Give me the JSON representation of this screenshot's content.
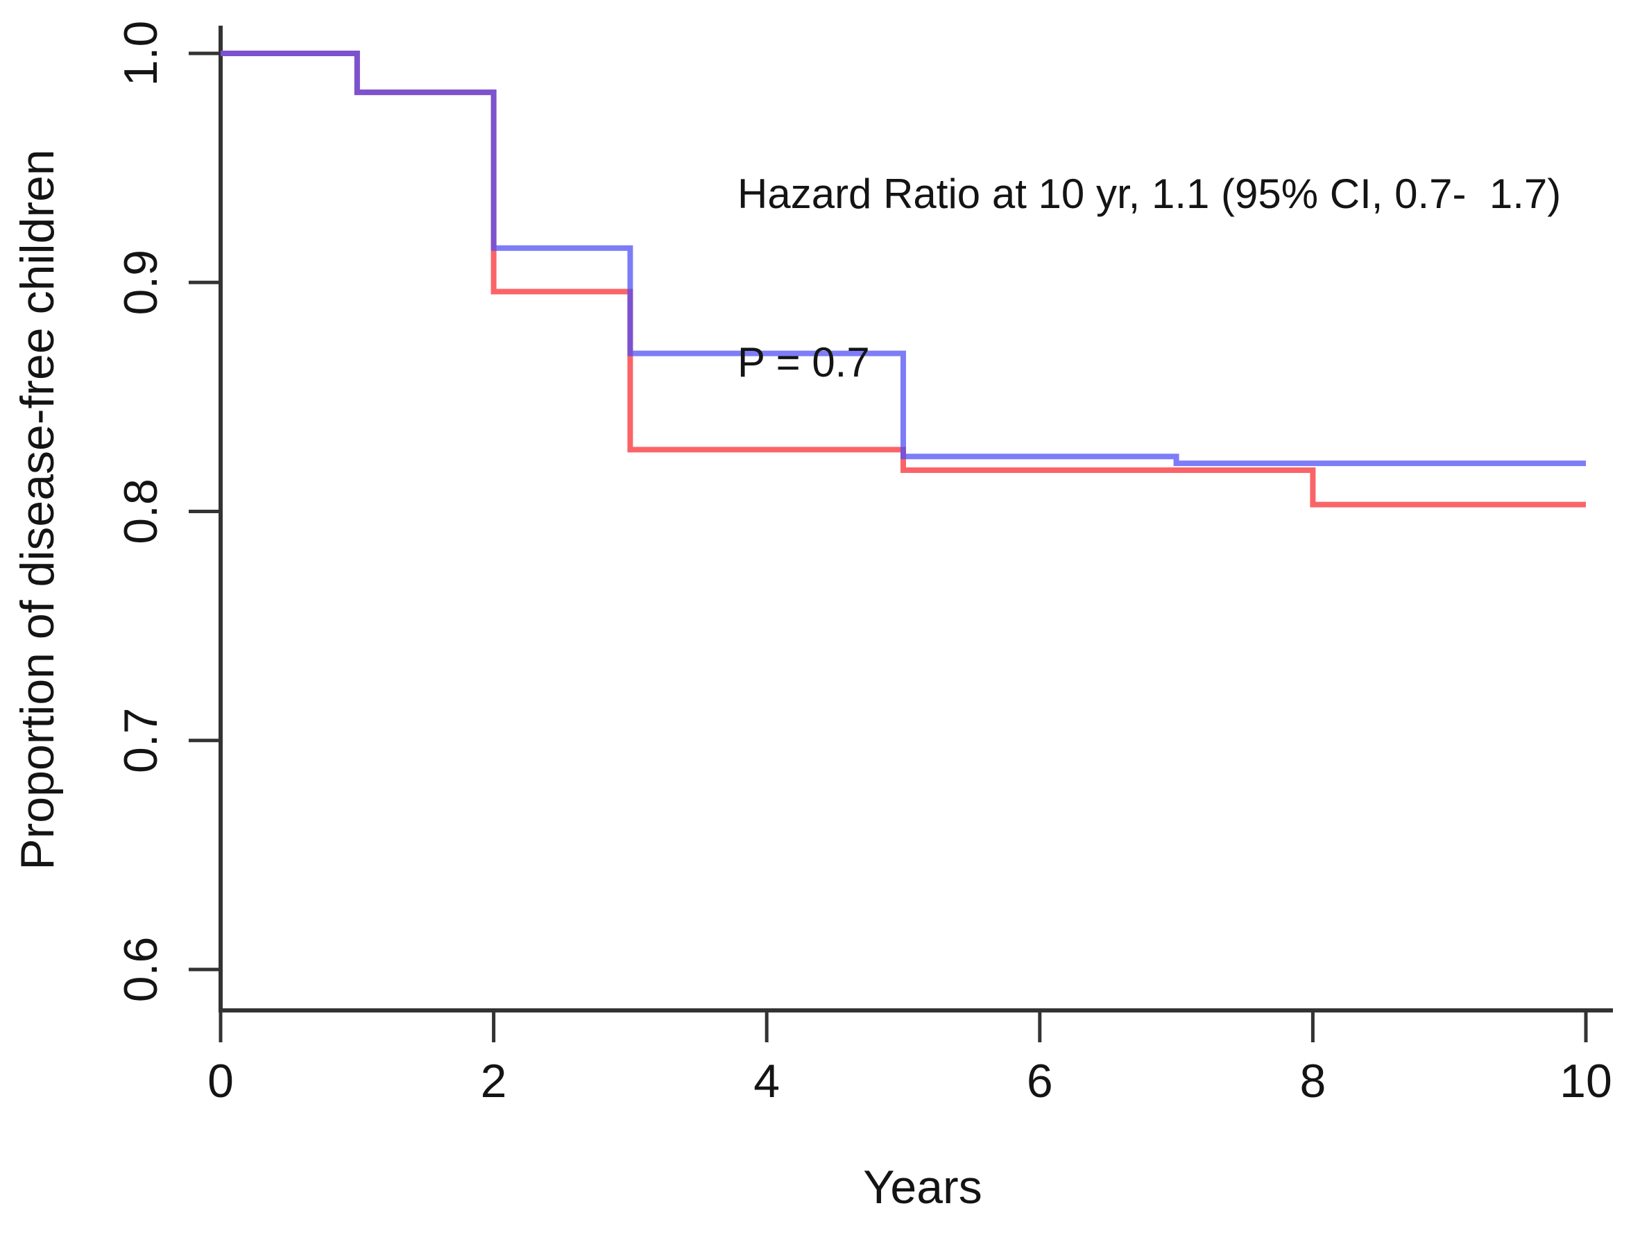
{
  "chart_data": {
    "type": "line",
    "subtype": "kaplan-meier-step-curves",
    "title": "",
    "xlabel": "Years",
    "ylabel": "Proportion of disease-free children",
    "xlim": [
      0,
      10
    ],
    "ylim": [
      0.58,
      1.0
    ],
    "grid": false,
    "legend_position": "none",
    "xticks": [
      {
        "v": 0,
        "label": "0"
      },
      {
        "v": 2,
        "label": "2"
      },
      {
        "v": 4,
        "label": "4"
      },
      {
        "v": 6,
        "label": "6"
      },
      {
        "v": 8,
        "label": "8"
      },
      {
        "v": 10,
        "label": "10"
      }
    ],
    "yticks": [
      {
        "v": 0.6,
        "label": "0.6"
      },
      {
        "v": 0.7,
        "label": "0.7"
      },
      {
        "v": 0.8,
        "label": "0.8"
      },
      {
        "v": 0.9,
        "label": "0.9"
      },
      {
        "v": 1.0,
        "label": "1.0"
      }
    ],
    "annotation": {
      "line1": "Hazard Ratio at 10 yr, 1.1 (95% CI, 0.7-  1.7)",
      "line2": "P = 0.7"
    },
    "series": [
      {
        "name": "red-group",
        "color": "#fa6468",
        "opacity": 1,
        "step_points": [
          [
            0,
            1.0
          ],
          [
            1,
            0.983
          ],
          [
            2,
            0.896
          ],
          [
            3,
            0.827
          ],
          [
            5,
            0.818
          ],
          [
            8,
            0.803
          ],
          [
            10,
            0.803
          ]
        ]
      },
      {
        "name": "blue-group",
        "color": "#4b4bf5",
        "opacity": 0.72,
        "step_points": [
          [
            0,
            1.0
          ],
          [
            1,
            0.983
          ],
          [
            2,
            0.915
          ],
          [
            3,
            0.869
          ],
          [
            5,
            0.824
          ],
          [
            7,
            0.821
          ],
          [
            10,
            0.821
          ]
        ]
      }
    ],
    "overlap_render_color": "#a14bd0",
    "axis_color": "#333333",
    "text_color": "#141414"
  }
}
